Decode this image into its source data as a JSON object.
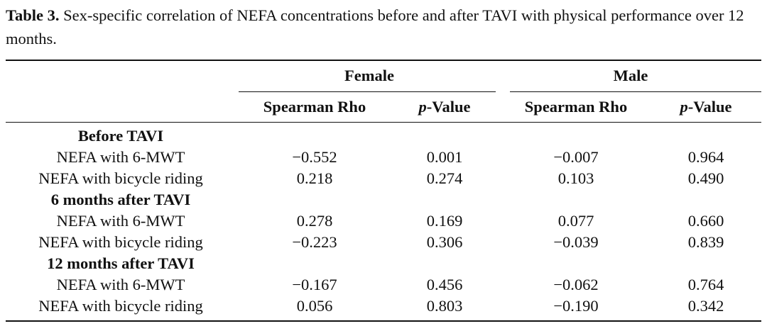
{
  "caption": {
    "label": "Table 3.",
    "text": " Sex-specific correlation of NEFA concentrations before and after TAVI with physical performance over 12 months."
  },
  "table": {
    "groups": [
      "Female",
      "Male"
    ],
    "columns": [
      {
        "prefix": "",
        "italic": "",
        "rest": "Spearman Rho"
      },
      {
        "prefix": "",
        "italic": "p",
        "rest": "-Value"
      },
      {
        "prefix": "",
        "italic": "",
        "rest": "Spearman Rho"
      },
      {
        "prefix": "",
        "italic": "p",
        "rest": "-Value"
      }
    ],
    "sections": [
      {
        "title": "Before TAVI",
        "rows": [
          {
            "label": "NEFA with 6-MWT",
            "values": [
              "−0.552",
              "0.001",
              "−0.007",
              "0.964"
            ]
          },
          {
            "label": "NEFA with bicycle riding",
            "values": [
              "0.218",
              "0.274",
              "0.103",
              "0.490"
            ]
          }
        ]
      },
      {
        "title": "6 months after TAVI",
        "rows": [
          {
            "label": "NEFA with 6-MWT",
            "values": [
              "0.278",
              "0.169",
              "0.077",
              "0.660"
            ]
          },
          {
            "label": "NEFA with bicycle riding",
            "values": [
              "−0.223",
              "0.306",
              "−0.039",
              "0.839"
            ]
          }
        ]
      },
      {
        "title": "12 months after TAVI",
        "rows": [
          {
            "label": "NEFA with 6-MWT",
            "values": [
              "−0.167",
              "0.456",
              "−0.062",
              "0.764"
            ]
          },
          {
            "label": "NEFA with bicycle riding",
            "values": [
              "0.056",
              "0.803",
              "−0.190",
              "0.342"
            ]
          }
        ]
      }
    ]
  }
}
